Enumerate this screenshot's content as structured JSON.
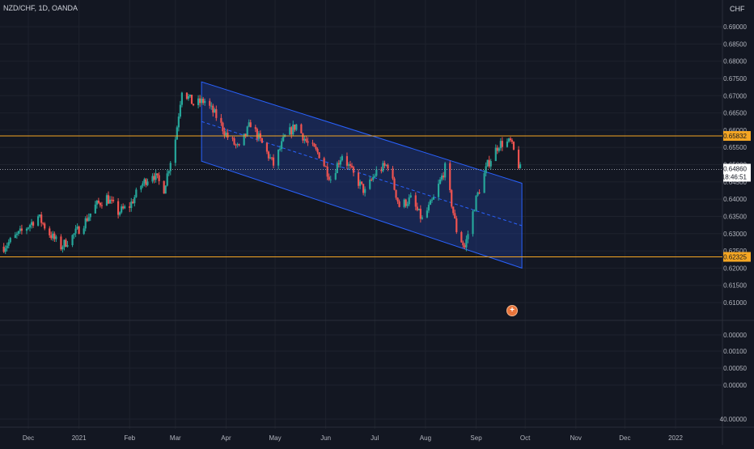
{
  "header": {
    "symbol": "NZD/CHF, 1D, OANDA",
    "currency": "CHF"
  },
  "colors": {
    "background": "#131722",
    "grid": "#1e222d",
    "text": "#b2b5be",
    "up": "#26a69a",
    "down": "#ef5350",
    "hline": "#f5a623",
    "channel_stroke": "#2962ff",
    "channel_fill": "#1e3a8a"
  },
  "axes": {
    "price_ticks": [
      "0.69000",
      "0.68500",
      "0.68000",
      "0.67500",
      "0.67000",
      "0.66500",
      "0.66000",
      "0.65500",
      "0.65000",
      "0.64500",
      "0.64000",
      "0.63500",
      "0.63000",
      "0.62500",
      "0.62000",
      "0.61500",
      "0.61000"
    ],
    "lower_ticks": [
      "0.00000",
      "0.00100",
      "0.00050",
      "0.00000",
      "40.00000"
    ],
    "time_ticks": [
      "Dec",
      "2021",
      "Feb",
      "Mar",
      "Apr",
      "May",
      "Jun",
      "Jul",
      "Aug",
      "Sep",
      "Oct",
      "Nov",
      "Dec",
      "2022"
    ]
  },
  "levels": {
    "resistance": "0.65832",
    "support": "0.62325"
  },
  "current": {
    "price": "0.64860",
    "countdown": "18:46:51"
  },
  "buttons": {
    "plus_glyph": "+"
  },
  "chart_data": {
    "type": "candlestick",
    "title": "NZD/CHF, 1D, OANDA",
    "ylim": [
      0.6085,
      0.6915
    ],
    "x_range": [
      "2020-11-14",
      "2022-01-15"
    ],
    "close_path": [
      [
        "2020-11-16",
        0.6262
      ],
      [
        "2020-11-23",
        0.629
      ],
      [
        "2020-11-30",
        0.6318
      ],
      [
        "2020-12-07",
        0.635
      ],
      [
        "2020-12-14",
        0.63
      ],
      [
        "2020-12-21",
        0.6262
      ],
      [
        "2020-12-28",
        0.6292
      ],
      [
        "2021-01-04",
        0.633
      ],
      [
        "2021-01-11",
        0.638
      ],
      [
        "2021-01-18",
        0.6405
      ],
      [
        "2021-01-25",
        0.6362
      ],
      [
        "2021-02-01",
        0.638
      ],
      [
        "2021-02-08",
        0.644
      ],
      [
        "2021-02-15",
        0.6475
      ],
      [
        "2021-02-22",
        0.643
      ],
      [
        "2021-03-01",
        0.6575
      ],
      [
        "2021-03-05",
        0.672
      ],
      [
        "2021-03-12",
        0.6675
      ],
      [
        "2021-03-19",
        0.6685
      ],
      [
        "2021-03-26",
        0.664
      ],
      [
        "2021-04-02",
        0.658
      ],
      [
        "2021-04-09",
        0.6545
      ],
      [
        "2021-04-16",
        0.662
      ],
      [
        "2021-04-23",
        0.656
      ],
      [
        "2021-04-30",
        0.65
      ],
      [
        "2021-05-07",
        0.658
      ],
      [
        "2021-05-14",
        0.6615
      ],
      [
        "2021-05-21",
        0.656
      ],
      [
        "2021-05-28",
        0.653
      ],
      [
        "2021-06-04",
        0.646
      ],
      [
        "2021-06-11",
        0.653
      ],
      [
        "2021-06-18",
        0.647
      ],
      [
        "2021-06-25",
        0.642
      ],
      [
        "2021-07-02",
        0.648
      ],
      [
        "2021-07-09",
        0.65
      ],
      [
        "2021-07-16",
        0.638
      ],
      [
        "2021-07-23",
        0.64
      ],
      [
        "2021-07-30",
        0.634
      ],
      [
        "2021-08-06",
        0.64
      ],
      [
        "2021-08-13",
        0.649
      ],
      [
        "2021-08-20",
        0.631
      ],
      [
        "2021-08-25",
        0.626
      ],
      [
        "2021-09-01",
        0.64
      ],
      [
        "2021-09-08",
        0.65
      ],
      [
        "2021-09-15",
        0.656
      ],
      [
        "2021-09-22",
        0.6565
      ],
      [
        "2021-09-28",
        0.6486
      ]
    ],
    "channel": {
      "upper": [
        [
          "2021-03-17",
          0.674
        ],
        [
          "2021-09-29",
          0.6446
        ]
      ],
      "lower": [
        [
          "2021-03-17",
          0.651
        ],
        [
          "2021-09-29",
          0.62
        ]
      ]
    },
    "resistance": 0.65832,
    "support": 0.62325,
    "last_price": 0.6486
  }
}
